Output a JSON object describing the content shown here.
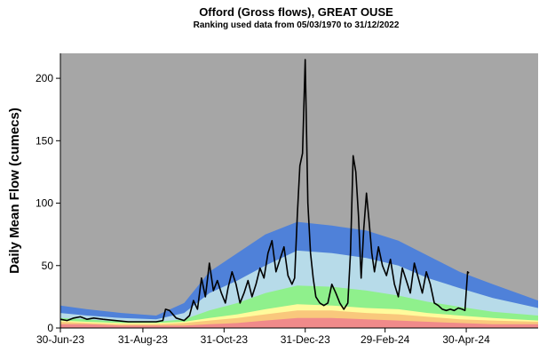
{
  "chart_data": {
    "type": "area",
    "title": "Offord (Gross flows), GREAT OUSE",
    "subtitle": "Ranking used data from 05/03/1970 to 31/12/2022",
    "ylabel": "Daily Mean Flow (cumecs)",
    "xlabel": "",
    "ylim": [
      0,
      220
    ],
    "yticks": [
      0,
      50,
      100,
      150,
      200
    ],
    "xlim": [
      "2023-06-30",
      "2024-06-23"
    ],
    "xticks": [
      "30-Jun-23",
      "31-Aug-23",
      "31-Oct-23",
      "31-Dec-23",
      "29-Feb-24",
      "30-Apr-24"
    ],
    "xtick_dates": [
      "2023-06-30",
      "2023-08-31",
      "2023-10-31",
      "2023-12-31",
      "2024-02-29",
      "2024-04-30"
    ],
    "grid": false,
    "legend": "none",
    "colors": {
      "background": "#a6a6a6",
      "band_dark_blue": "#4f81d9",
      "band_light_blue": "#b7dbe9",
      "band_green": "#8ff08c",
      "band_yellow": "#fffb9c",
      "band_orange": "#f9c87c",
      "band_red": "#f08a8a",
      "flow_line": "#000000"
    },
    "band_dates": [
      "2023-06-30",
      "2023-07-20",
      "2023-08-15",
      "2023-09-10",
      "2023-10-01",
      "2023-10-20",
      "2023-11-10",
      "2023-12-01",
      "2023-12-25",
      "2024-01-20",
      "2024-02-15",
      "2024-03-10",
      "2024-04-01",
      "2024-04-25",
      "2024-05-20",
      "2024-06-23"
    ],
    "bands": [
      {
        "upper": [
          18,
          15,
          12,
          10,
          20,
          45,
          60,
          75,
          85,
          82,
          78,
          70,
          58,
          45,
          35,
          22
        ]
      },
      {
        "upper": [
          12,
          10,
          8,
          7,
          12,
          28,
          38,
          50,
          62,
          60,
          56,
          50,
          40,
          32,
          24,
          16
        ]
      },
      {
        "upper": [
          8,
          7,
          5,
          5,
          7,
          14,
          20,
          28,
          34,
          33,
          30,
          26,
          21,
          17,
          13,
          10
        ]
      },
      {
        "upper": [
          6,
          5,
          4,
          4,
          5,
          8,
          11,
          15,
          19,
          18,
          16,
          15,
          12,
          10,
          8,
          6
        ]
      },
      {
        "upper": [
          5,
          4,
          3,
          3,
          4,
          6,
          8,
          11,
          14,
          14,
          12,
          11,
          9,
          7,
          6,
          5
        ]
      },
      {
        "upper": [
          3,
          3,
          2,
          2,
          2,
          3,
          4,
          6,
          8,
          8,
          7,
          6,
          5,
          4,
          3,
          3
        ]
      }
    ],
    "flow": {
      "dates": [
        "2023-06-30",
        "2023-07-05",
        "2023-07-10",
        "2023-07-15",
        "2023-07-20",
        "2023-07-25",
        "2023-08-01",
        "2023-08-10",
        "2023-08-20",
        "2023-08-31",
        "2023-09-10",
        "2023-09-15",
        "2023-09-17",
        "2023-09-20",
        "2023-09-25",
        "2023-10-01",
        "2023-10-05",
        "2023-10-08",
        "2023-10-11",
        "2023-10-14",
        "2023-10-17",
        "2023-10-20",
        "2023-10-23",
        "2023-10-26",
        "2023-10-29",
        "2023-11-01",
        "2023-11-03",
        "2023-11-06",
        "2023-11-09",
        "2023-11-12",
        "2023-11-15",
        "2023-11-18",
        "2023-11-21",
        "2023-11-24",
        "2023-11-27",
        "2023-11-30",
        "2023-12-03",
        "2023-12-06",
        "2023-12-09",
        "2023-12-12",
        "2023-12-15",
        "2023-12-18",
        "2023-12-21",
        "2023-12-23",
        "2023-12-25",
        "2023-12-27",
        "2023-12-29",
        "2023-12-31",
        "2024-01-02",
        "2024-01-04",
        "2024-01-06",
        "2024-01-08",
        "2024-01-11",
        "2024-01-14",
        "2024-01-17",
        "2024-01-20",
        "2024-01-23",
        "2024-01-26",
        "2024-01-29",
        "2024-02-01",
        "2024-02-03",
        "2024-02-05",
        "2024-02-07",
        "2024-02-09",
        "2024-02-11",
        "2024-02-13",
        "2024-02-15",
        "2024-02-17",
        "2024-02-19",
        "2024-02-21",
        "2024-02-24",
        "2024-02-27",
        "2024-03-01",
        "2024-03-04",
        "2024-03-07",
        "2024-03-10",
        "2024-03-13",
        "2024-03-16",
        "2024-03-19",
        "2024-03-22",
        "2024-03-25",
        "2024-03-28",
        "2024-03-31",
        "2024-04-03",
        "2024-04-06",
        "2024-04-09",
        "2024-04-12",
        "2024-04-15",
        "2024-04-18",
        "2024-04-21",
        "2024-04-24",
        "2024-04-27",
        "2024-04-29",
        "2024-05-01",
        "2024-05-02"
      ],
      "values": [
        7,
        6,
        8,
        9,
        7,
        8,
        7,
        6,
        5,
        5,
        5,
        6,
        15,
        14,
        8,
        6,
        10,
        22,
        15,
        40,
        25,
        52,
        30,
        38,
        28,
        20,
        32,
        45,
        35,
        20,
        28,
        38,
        25,
        35,
        48,
        40,
        60,
        70,
        45,
        55,
        65,
        42,
        35,
        40,
        90,
        130,
        140,
        215,
        100,
        60,
        40,
        25,
        20,
        18,
        20,
        35,
        28,
        20,
        15,
        20,
        60,
        138,
        125,
        90,
        40,
        80,
        108,
        85,
        60,
        45,
        65,
        50,
        42,
        55,
        35,
        25,
        48,
        38,
        28,
        52,
        40,
        28,
        45,
        35,
        20,
        18,
        15,
        14,
        15,
        14,
        16,
        15,
        14,
        45,
        44
      ]
    }
  }
}
